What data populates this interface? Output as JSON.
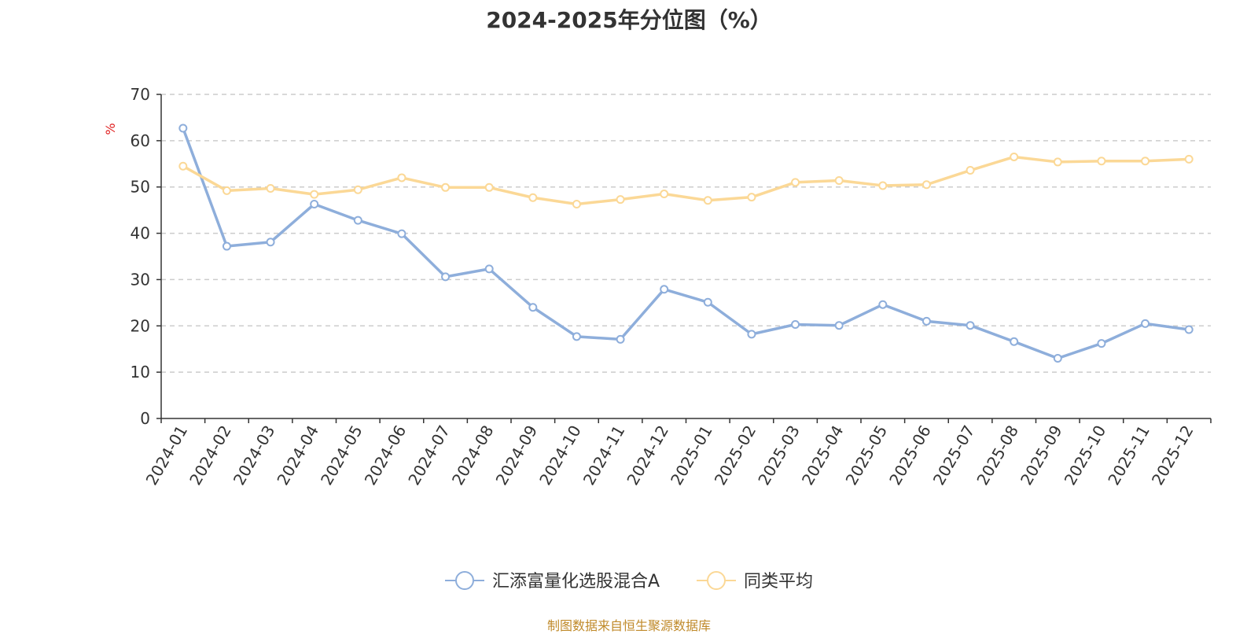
{
  "chart_data": {
    "type": "line",
    "title": "2024-2025年分位图（%）",
    "ylabel": "%",
    "ylim": [
      0,
      70
    ],
    "yticks": [
      0,
      10,
      20,
      30,
      40,
      50,
      60,
      70
    ],
    "grid": true,
    "legend_position": "bottom",
    "categories": [
      "2024-01",
      "2024-02",
      "2024-03",
      "2024-04",
      "2024-05",
      "2024-06",
      "2024-07",
      "2024-08",
      "2024-09",
      "2024-10",
      "2024-11",
      "2024-12",
      "2025-01",
      "2025-02",
      "2025-03",
      "2025-04",
      "2025-05",
      "2025-06",
      "2025-07",
      "2025-08",
      "2025-09",
      "2025-10",
      "2025-11",
      "2025-12"
    ],
    "series": [
      {
        "name": "汇添富量化选股混合A",
        "color": "#8eaedb",
        "values": [
          62.7,
          37.2,
          38.1,
          46.3,
          42.8,
          39.9,
          30.6,
          32.3,
          24.0,
          17.7,
          17.1,
          27.9,
          25.1,
          18.2,
          20.3,
          20.1,
          24.6,
          21.0,
          20.1,
          16.6,
          13.0,
          16.2,
          20.5,
          19.2
        ]
      },
      {
        "name": "同类平均",
        "color": "#fbd896",
        "values": [
          54.5,
          49.2,
          49.7,
          48.4,
          49.4,
          52.0,
          49.9,
          49.9,
          47.7,
          46.3,
          47.3,
          48.5,
          47.1,
          47.8,
          51.0,
          51.4,
          50.3,
          50.5,
          53.6,
          56.5,
          55.4,
          55.6,
          55.6,
          56.0
        ]
      }
    ]
  },
  "source_text": "制图数据来自恒生聚源数据库"
}
